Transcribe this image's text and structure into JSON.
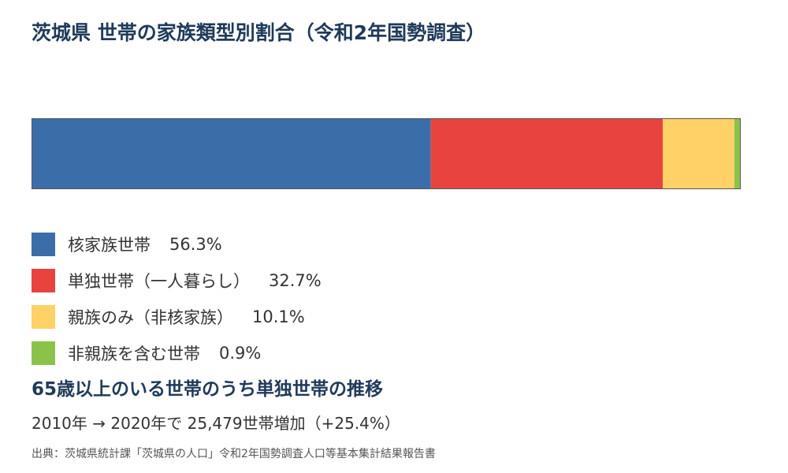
{
  "chart_data": {
    "type": "bar",
    "orientation": "horizontal-stacked-100",
    "title": "茨城県 世帯の家族類型別割合（令和2年国勢調査）",
    "categories": [
      "核家族世帯",
      "単独世帯（一人暮らし）",
      "親族のみ（非核家族）",
      "非親族を含む世帯"
    ],
    "values": [
      56.3,
      32.7,
      10.1,
      0.9
    ],
    "value_labels": [
      "56.3%",
      "32.7%",
      "10.1%",
      "0.9%"
    ],
    "colors": [
      "#3b6ea8",
      "#e8433f",
      "#ffd166",
      "#8bc34a"
    ],
    "xlim": [
      0,
      100
    ],
    "grid": false,
    "legend_position": "bottom-left"
  },
  "subheading": "65歳以上のいる世帯のうち単独世帯の推移",
  "trend_text": "2010年 → 2020年で 25,479世帯増加（+25.4%）",
  "source": "出典：茨城県統計課「茨城県の人口」令和2年国勢調査人口等基本集計結果報告書"
}
